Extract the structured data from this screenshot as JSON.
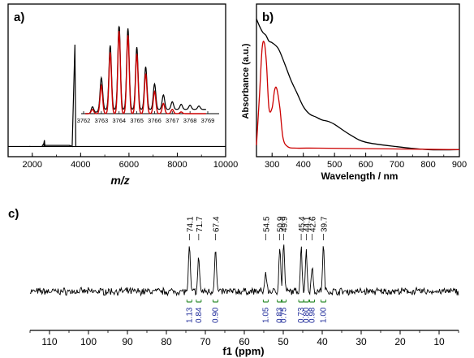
{
  "chart_data": [
    {
      "panel_label": "a)",
      "type": "line",
      "xlabel": "m/z",
      "ylabel": "",
      "xlim": [
        1000,
        10000
      ],
      "xticks": [
        2000,
        4000,
        6000,
        8000,
        10000
      ],
      "series": [
        {
          "color": "#000000",
          "x": [
            1000,
            2400,
            2480,
            2500,
            2520,
            3550,
            3650,
            3763,
            3800,
            3900,
            10000
          ],
          "y": [
            0.02,
            0.02,
            0.05,
            0.08,
            0.03,
            0.03,
            0.02,
            1.0,
            0.02,
            0.02,
            0.02
          ]
        }
      ],
      "inset": {
        "xlim": [
          3762,
          3769
        ],
        "xticks": [
          3762,
          3763,
          3764,
          3765,
          3766,
          3767,
          3768,
          3769
        ],
        "series": [
          {
            "color": "#000000",
            "x": [
              3762.5,
              3763.0,
              3763.5,
              3764.0,
              3764.5,
              3765.0,
              3765.5,
              3766.0,
              3766.5,
              3767.0,
              3767.5,
              3768.0,
              3768.5
            ],
            "y": [
              0.08,
              0.38,
              0.75,
              1.0,
              0.95,
              0.73,
              0.5,
              0.3,
              0.17,
              0.09,
              0.06,
              0.05,
              0.04
            ]
          },
          {
            "color": "#cc0000",
            "x": [
              3762.5,
              3763.0,
              3763.5,
              3764.0,
              3764.5,
              3765.0,
              3765.5,
              3766.0,
              3766.5,
              3767.0,
              3767.5,
              3768.0,
              3768.5
            ],
            "y": [
              0.05,
              0.33,
              0.72,
              0.97,
              0.92,
              0.7,
              0.47,
              0.26,
              0.12,
              0.05,
              0.02,
              0.0,
              0.0
            ]
          }
        ]
      }
    },
    {
      "panel_label": "b)",
      "type": "line",
      "xlabel": "Wavelength / nm",
      "ylabel": "Absorbance (a.u.)",
      "xlim": [
        250,
        900
      ],
      "xticks": [
        300,
        400,
        500,
        600,
        700,
        800,
        900
      ],
      "series": [
        {
          "color": "#000000",
          "x": [
            250,
            260,
            270,
            280,
            290,
            300,
            320,
            340,
            360,
            380,
            400,
            420,
            440,
            460,
            480,
            500,
            550,
            600,
            700,
            800,
            900
          ],
          "y": [
            0.9,
            0.85,
            0.81,
            0.79,
            0.75,
            0.74,
            0.7,
            0.6,
            0.49,
            0.4,
            0.31,
            0.26,
            0.24,
            0.22,
            0.21,
            0.19,
            0.12,
            0.07,
            0.04,
            0.02,
            0.02
          ]
        },
        {
          "color": "#cc0000",
          "x": [
            250,
            260,
            268,
            275,
            282,
            290,
            300,
            308,
            315,
            325,
            335,
            350,
            380,
            450,
            900
          ],
          "y": [
            0.05,
            0.4,
            0.7,
            0.74,
            0.6,
            0.3,
            0.3,
            0.42,
            0.43,
            0.3,
            0.1,
            0.04,
            0.03,
            0.03,
            0.02
          ]
        }
      ]
    },
    {
      "panel_label": "c)",
      "type": "line",
      "xlabel": "f1 (ppm)",
      "ylabel": "",
      "xlim": [
        115,
        5
      ],
      "xticks": [
        110,
        100,
        90,
        80,
        70,
        60,
        50,
        40,
        30,
        20,
        10
      ],
      "peaks": [
        {
          "ppm": 74.1,
          "label": "74.1",
          "integral": "1.13",
          "height": 0.95
        },
        {
          "ppm": 71.7,
          "label": "71.7",
          "integral": "0.84",
          "height": 0.72
        },
        {
          "ppm": 67.4,
          "label": "67.4",
          "integral": "0.90",
          "height": 0.95
        },
        {
          "ppm": 54.5,
          "label": "54.5",
          "integral": "1.05",
          "height": 0.42
        },
        {
          "ppm": 50.9,
          "label": "50.9",
          "integral": "0.83",
          "height": 0.95
        },
        {
          "ppm": 49.9,
          "label": "49.9",
          "integral": "0.75",
          "height": 1.0
        },
        {
          "ppm": 45.4,
          "label": "45.4",
          "integral": "0.73",
          "height": 0.93
        },
        {
          "ppm": 44.1,
          "label": "44.1",
          "integral": "0.80",
          "height": 0.85
        },
        {
          "ppm": 42.6,
          "label": "42.6",
          "integral": "0.98",
          "height": 0.55
        },
        {
          "ppm": 39.7,
          "label": "39.7",
          "integral": "1.00",
          "height": 0.95
        }
      ]
    }
  ]
}
